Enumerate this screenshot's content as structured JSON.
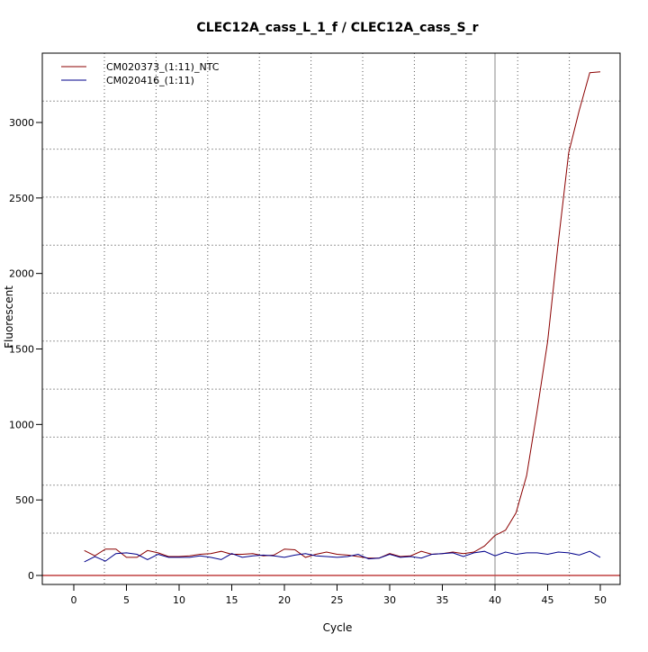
{
  "chart_data": {
    "type": "line",
    "title": "CLEC12A_cass_L_1_f / CLEC12A_cass_S_r",
    "xlabel": "Cycle",
    "ylabel": "Fluorescent",
    "xlim": [
      -3,
      52.5
    ],
    "ylim": [
      -50,
      3450
    ],
    "xticks": [
      0,
      5,
      10,
      15,
      20,
      25,
      30,
      35,
      40,
      45,
      50
    ],
    "yticks": [
      0,
      500,
      1000,
      1500,
      2000,
      2500,
      3000
    ],
    "grid": true,
    "legend_position": "top-left",
    "threshold": 0,
    "marker_cycle": 40,
    "x": [
      1,
      2,
      3,
      4,
      5,
      6,
      7,
      8,
      9,
      10,
      11,
      12,
      13,
      14,
      15,
      16,
      17,
      18,
      19,
      20,
      21,
      22,
      23,
      24,
      25,
      26,
      27,
      28,
      29,
      30,
      31,
      32,
      33,
      34,
      35,
      36,
      37,
      38,
      39,
      40,
      41,
      42,
      43,
      44,
      45,
      46,
      47,
      48,
      49,
      50
    ],
    "series": [
      {
        "name": "CM020373_(1:11)_NTC",
        "color": "#8b0000",
        "values": [
          165,
          130,
          175,
          175,
          120,
          120,
          165,
          150,
          125,
          125,
          130,
          140,
          145,
          160,
          140,
          140,
          145,
          130,
          135,
          175,
          170,
          120,
          140,
          155,
          140,
          135,
          125,
          115,
          115,
          145,
          125,
          130,
          160,
          140,
          145,
          155,
          145,
          155,
          195,
          265,
          300,
          415,
          660,
          1090,
          1550,
          2200,
          2800,
          3080,
          3330,
          3335
        ]
      },
      {
        "name": "CM020416_(1:11)",
        "color": "#00008b",
        "values": [
          90,
          125,
          95,
          145,
          150,
          140,
          105,
          140,
          120,
          120,
          120,
          130,
          120,
          105,
          145,
          120,
          130,
          135,
          130,
          120,
          135,
          145,
          130,
          125,
          120,
          125,
          140,
          110,
          115,
          140,
          120,
          125,
          115,
          140,
          145,
          150,
          125,
          150,
          160,
          130,
          155,
          140,
          150,
          150,
          140,
          155,
          150,
          135,
          160,
          120
        ]
      }
    ]
  }
}
